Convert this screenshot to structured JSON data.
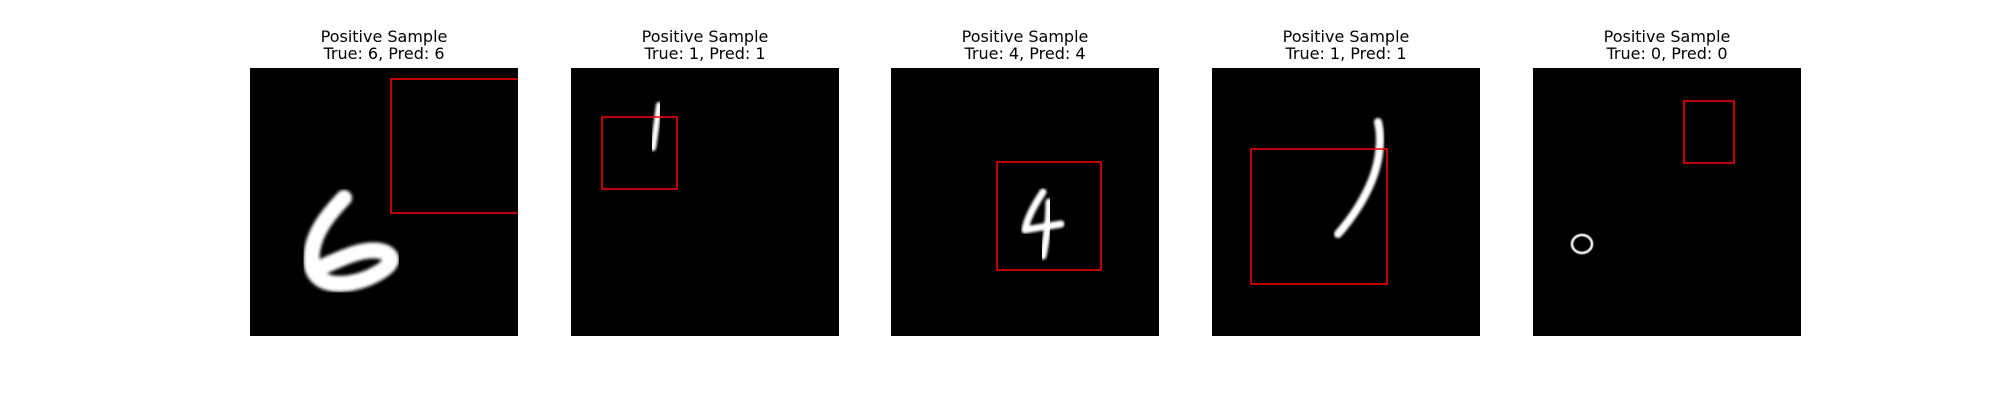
{
  "figure": {
    "panels": [
      {
        "title": "Positive Sample",
        "subtitle": "True: 6, Pred: 6",
        "digit": "6"
      },
      {
        "title": "Positive Sample",
        "subtitle": "True: 1, Pred: 1",
        "digit": "1"
      },
      {
        "title": "Positive Sample",
        "subtitle": "True: 4, Pred: 4",
        "digit": "4"
      },
      {
        "title": "Positive Sample",
        "subtitle": "True: 1, Pred: 1",
        "digit": "1"
      },
      {
        "title": "Positive Sample",
        "subtitle": "True: 0, Pred: 0",
        "digit": "0"
      }
    ]
  },
  "colors": {
    "image_background": "#000000",
    "digit_stroke": "#ffffff",
    "bounding_box": "#ff0000"
  }
}
